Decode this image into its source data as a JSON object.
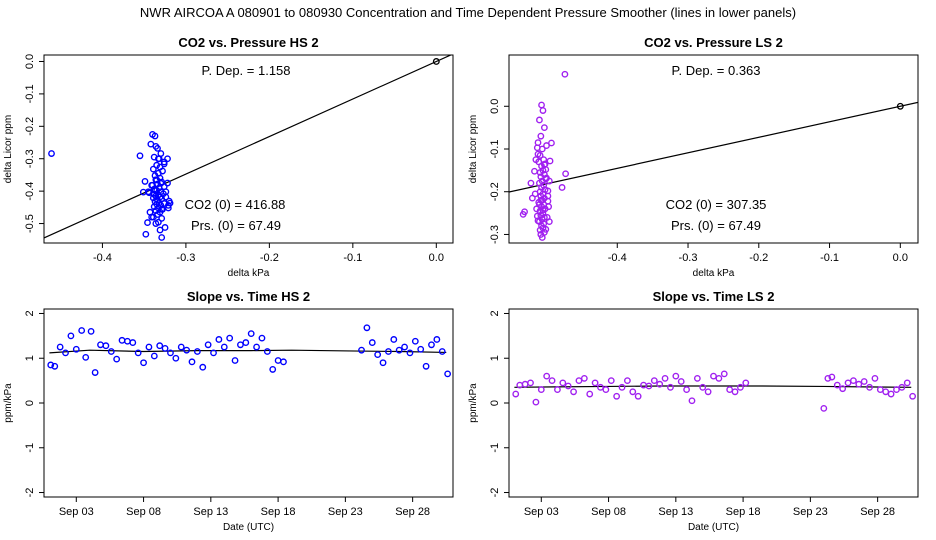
{
  "page": {
    "title": "NWR   AIRCOA A   080901 to 080930   Concentration and Time Dependent Pressure Smoother (lines in lower panels)"
  },
  "colors": {
    "hs_points": "#0000ff",
    "ls_points": "#a020f0",
    "line": "#000000",
    "axis": "#000000"
  },
  "chart_data": [
    {
      "id": "hs-scatter",
      "type": "scatter",
      "title": "CO2 vs. Pressure HS 2",
      "xlabel": "delta kPa",
      "ylabel": "delta Licor ppm",
      "xlim": [
        -0.47,
        0.02
      ],
      "ylim": [
        -0.56,
        0.02
      ],
      "xticks": [
        -0.4,
        -0.3,
        -0.2,
        -0.1,
        0.0
      ],
      "xtick_labels": [
        "-0.4",
        "-0.3",
        "-0.2",
        "-0.1",
        "0.0"
      ],
      "yticks": [
        0.0,
        -0.1,
        -0.2,
        -0.3,
        -0.4,
        -0.5
      ],
      "ytick_labels": [
        "0.0",
        "-0.1",
        "-0.2",
        "-0.3",
        "-0.4",
        "-0.5"
      ],
      "annotations": {
        "p_dep": "P. Dep. =  1.158",
        "co2_0": "CO2 (0) =  416.88",
        "prs_0": "Prs. (0) =  67.49"
      },
      "reference_point": [
        0.0,
        0.0
      ],
      "fit_line": {
        "slope": 1.158,
        "intercept": 0.0
      },
      "x": [
        -0.461,
        -0.34,
        -0.337,
        -0.336,
        -0.334,
        -0.342,
        -0.33,
        -0.338,
        -0.332,
        -0.335,
        -0.339,
        -0.328,
        -0.333,
        -0.337,
        -0.331,
        -0.336,
        -0.329,
        -0.334,
        -0.34,
        -0.326,
        -0.332,
        -0.338,
        -0.335,
        -0.33,
        -0.344,
        -0.327,
        -0.333,
        -0.336,
        -0.331,
        -0.339,
        -0.329,
        -0.334,
        -0.337,
        -0.332,
        -0.335,
        -0.33,
        -0.338,
        -0.333,
        -0.328,
        -0.336,
        -0.331,
        -0.334,
        -0.339,
        -0.322,
        -0.326,
        -0.333,
        -0.349,
        -0.341,
        -0.336,
        -0.331,
        -0.322,
        -0.319,
        -0.325,
        -0.348,
        -0.329,
        -0.321,
        -0.326,
        -0.335,
        -0.33,
        -0.331,
        -0.337,
        -0.324,
        -0.345,
        -0.343,
        -0.326,
        -0.329,
        -0.324,
        -0.338,
        -0.341,
        -0.346,
        -0.32,
        -0.355,
        -0.351,
        -0.333,
        -0.329,
        -0.321
      ],
      "y": [
        -0.284,
        -0.225,
        -0.23,
        -0.262,
        -0.268,
        -0.255,
        -0.284,
        -0.295,
        -0.3,
        -0.32,
        -0.332,
        -0.338,
        -0.345,
        -0.352,
        -0.36,
        -0.365,
        -0.372,
        -0.378,
        -0.382,
        -0.386,
        -0.39,
        -0.394,
        -0.398,
        -0.402,
        -0.405,
        -0.408,
        -0.412,
        -0.415,
        -0.418,
        -0.421,
        -0.424,
        -0.428,
        -0.432,
        -0.436,
        -0.44,
        -0.444,
        -0.448,
        -0.452,
        -0.456,
        -0.46,
        -0.465,
        -0.472,
        -0.48,
        -0.3,
        -0.31,
        -0.3,
        -0.37,
        -0.382,
        -0.5,
        -0.52,
        -0.375,
        -0.437,
        -0.512,
        -0.533,
        -0.543,
        -0.452,
        -0.316,
        -0.365,
        -0.376,
        -0.326,
        -0.397,
        -0.402,
        -0.402,
        -0.465,
        -0.438,
        -0.484,
        -0.418,
        -0.41,
        -0.48,
        -0.497,
        -0.431,
        -0.291,
        -0.403,
        -0.496,
        -0.456,
        -0.444
      ]
    },
    {
      "id": "ls-scatter",
      "type": "scatter",
      "title": "CO2 vs. Pressure LS 2",
      "xlabel": "delta kPa",
      "ylabel": "delta Licor ppm",
      "xlim": [
        -0.553,
        0.025
      ],
      "ylim": [
        -0.32,
        0.12
      ],
      "xticks": [
        -0.4,
        -0.3,
        -0.2,
        -0.1,
        0.0
      ],
      "xtick_labels": [
        "-0.4",
        "-0.3",
        "-0.2",
        "-0.1",
        "0.0"
      ],
      "yticks": [
        0.0,
        -0.1,
        -0.2,
        -0.3
      ],
      "ytick_labels": [
        "0.0",
        "-0.1",
        "-0.2",
        "-0.3"
      ],
      "annotations": {
        "p_dep": "P. Dep. =  0.363",
        "co2_0": "CO2 (0) =  307.35",
        "prs_0": "Prs. (0) =  67.49"
      },
      "reference_point": [
        0.0,
        0.0
      ],
      "fit_line": {
        "slope": 0.363,
        "intercept": 0.0
      },
      "x": [
        -0.474,
        -0.507,
        -0.505,
        -0.51,
        -0.503,
        -0.508,
        -0.512,
        -0.5,
        -0.506,
        -0.509,
        -0.504,
        -0.511,
        -0.502,
        -0.507,
        -0.505,
        -0.509,
        -0.503,
        -0.508,
        -0.501,
        -0.506,
        -0.51,
        -0.504,
        -0.507,
        -0.502,
        -0.509,
        -0.505,
        -0.508,
        -0.503,
        -0.506,
        -0.511,
        -0.504,
        -0.507,
        -0.502,
        -0.509,
        -0.505,
        -0.508,
        -0.503,
        -0.506,
        -0.51,
        -0.504,
        -0.507,
        -0.505,
        -0.509,
        -0.503,
        -0.508,
        -0.506,
        -0.531,
        -0.533,
        -0.512,
        -0.496,
        -0.498,
        -0.473,
        -0.478,
        -0.513,
        -0.515,
        -0.522,
        -0.52,
        -0.497,
        -0.499,
        -0.514,
        -0.516,
        -0.501,
        -0.5,
        -0.498,
        -0.512,
        -0.493,
        -0.495,
        -0.517,
        -0.51,
        -0.498,
        -0.505,
        -0.501,
        -0.508,
        -0.503,
        -0.513,
        -0.496
      ],
      "y": [
        0.075,
        0.003,
        -0.01,
        -0.032,
        -0.05,
        -0.07,
        -0.085,
        -0.092,
        -0.1,
        -0.115,
        -0.125,
        -0.13,
        -0.135,
        -0.14,
        -0.15,
        -0.155,
        -0.16,
        -0.165,
        -0.17,
        -0.175,
        -0.18,
        -0.185,
        -0.19,
        -0.195,
        -0.2,
        -0.205,
        -0.21,
        -0.215,
        -0.22,
        -0.225,
        -0.23,
        -0.235,
        -0.24,
        -0.245,
        -0.25,
        -0.255,
        -0.26,
        -0.265,
        -0.27,
        -0.275,
        -0.28,
        -0.285,
        -0.29,
        -0.295,
        -0.3,
        -0.307,
        -0.247,
        -0.253,
        -0.112,
        -0.175,
        -0.21,
        -0.158,
        -0.19,
        -0.097,
        -0.125,
        -0.18,
        -0.215,
        -0.235,
        -0.26,
        -0.24,
        -0.205,
        -0.148,
        -0.168,
        -0.222,
        -0.268,
        -0.086,
        -0.128,
        -0.152,
        -0.23,
        -0.198,
        -0.243,
        -0.288,
        -0.22,
        -0.137,
        -0.257,
        -0.27
      ]
    },
    {
      "id": "hs-slope",
      "type": "scatter",
      "title": "Slope vs. Time HS 2",
      "xlabel": "Date (UTC)",
      "ylabel": "ppm/kPa",
      "xlim": [
        0.6,
        31.0
      ],
      "ylim": [
        -2.1,
        2.1
      ],
      "xticks": [
        3,
        8,
        13,
        18,
        23,
        28
      ],
      "xtick_labels": [
        "Sep 03",
        "Sep 08",
        "Sep 13",
        "Sep 18",
        "Sep 23",
        "Sep 28"
      ],
      "yticks": [
        2,
        1,
        0,
        -1,
        -2
      ],
      "ytick_labels": [
        "2",
        "1",
        "0",
        "-1",
        "-2"
      ],
      "smoother": {
        "x": [
          1.0,
          4.0,
          8.0,
          12.0,
          16.0,
          19.0,
          24.0,
          27.0,
          30.5
        ],
        "y": [
          1.12,
          1.18,
          1.15,
          1.17,
          1.17,
          1.18,
          1.16,
          1.15,
          1.13
        ]
      },
      "x": [
        1.1,
        1.4,
        1.8,
        2.2,
        2.6,
        3.0,
        3.4,
        3.7,
        4.1,
        4.4,
        4.8,
        5.2,
        5.6,
        6.0,
        6.4,
        6.8,
        7.2,
        7.6,
        8.0,
        8.4,
        8.8,
        9.2,
        9.6,
        10.0,
        10.4,
        10.8,
        11.2,
        11.6,
        12.0,
        12.4,
        12.8,
        13.2,
        13.6,
        14.0,
        14.4,
        14.8,
        15.2,
        15.6,
        16.0,
        16.4,
        16.8,
        17.2,
        17.6,
        18.0,
        18.4,
        24.2,
        24.6,
        25.0,
        25.4,
        25.8,
        26.2,
        26.6,
        27.0,
        27.4,
        27.8,
        28.2,
        28.6,
        29.0,
        29.4,
        29.8,
        30.2,
        30.6
      ],
      "y": [
        0.85,
        0.82,
        1.25,
        1.12,
        1.5,
        1.2,
        1.62,
        1.02,
        1.6,
        0.68,
        1.3,
        1.28,
        1.15,
        0.98,
        1.4,
        1.38,
        1.35,
        1.12,
        0.9,
        1.25,
        1.05,
        1.28,
        1.22,
        1.12,
        1.0,
        1.25,
        1.18,
        0.92,
        1.15,
        0.8,
        1.3,
        1.12,
        1.42,
        1.25,
        1.45,
        0.95,
        1.3,
        1.35,
        1.55,
        1.25,
        1.45,
        1.15,
        0.75,
        0.95,
        0.92,
        1.18,
        1.68,
        1.35,
        1.08,
        0.9,
        1.15,
        1.42,
        1.18,
        1.25,
        1.12,
        1.38,
        1.2,
        0.82,
        1.3,
        1.42,
        1.15,
        0.65
      ]
    },
    {
      "id": "ls-slope",
      "type": "scatter",
      "title": "Slope vs. Time LS 2",
      "xlabel": "Date (UTC)",
      "ylabel": "ppm/kPa",
      "xlim": [
        0.6,
        31.0
      ],
      "ylim": [
        -2.1,
        2.1
      ],
      "xticks": [
        3,
        8,
        13,
        18,
        23,
        28
      ],
      "xtick_labels": [
        "Sep 03",
        "Sep 08",
        "Sep 13",
        "Sep 18",
        "Sep 23",
        "Sep 28"
      ],
      "yticks": [
        2,
        1,
        0,
        -1,
        -2
      ],
      "ytick_labels": [
        "2",
        "1",
        "0",
        "-1",
        "-2"
      ],
      "smoother": {
        "x": [
          1.0,
          4.0,
          8.0,
          12.0,
          16.0,
          19.0,
          24.0,
          27.0,
          30.5
        ],
        "y": [
          0.35,
          0.36,
          0.37,
          0.38,
          0.38,
          0.38,
          0.37,
          0.36,
          0.35
        ]
      },
      "x": [
        1.1,
        1.4,
        1.8,
        2.2,
        2.6,
        3.0,
        3.4,
        3.8,
        4.2,
        4.6,
        5.0,
        5.4,
        5.8,
        6.2,
        6.6,
        7.0,
        7.4,
        7.8,
        8.2,
        8.6,
        9.0,
        9.4,
        9.8,
        10.2,
        10.6,
        11.0,
        11.4,
        11.8,
        12.2,
        12.6,
        13.0,
        13.4,
        13.8,
        14.2,
        14.6,
        15.0,
        15.4,
        15.8,
        16.2,
        16.6,
        17.0,
        17.4,
        17.8,
        18.2,
        24.0,
        24.3,
        24.6,
        25.0,
        25.4,
        25.8,
        26.2,
        26.6,
        27.0,
        27.4,
        27.8,
        28.2,
        28.6,
        29.0,
        29.4,
        29.8,
        30.2,
        30.6
      ],
      "y": [
        0.2,
        0.4,
        0.42,
        0.45,
        0.02,
        0.3,
        0.6,
        0.5,
        0.3,
        0.45,
        0.38,
        0.25,
        0.5,
        0.55,
        0.2,
        0.45,
        0.35,
        0.3,
        0.5,
        0.15,
        0.35,
        0.5,
        0.25,
        0.15,
        0.4,
        0.38,
        0.5,
        0.42,
        0.55,
        0.35,
        0.6,
        0.48,
        0.3,
        0.05,
        0.55,
        0.35,
        0.25,
        0.6,
        0.55,
        0.65,
        0.3,
        0.25,
        0.35,
        0.45,
        -0.12,
        0.55,
        0.58,
        0.4,
        0.32,
        0.45,
        0.5,
        0.42,
        0.48,
        0.35,
        0.55,
        0.3,
        0.25,
        0.2,
        0.3,
        0.35,
        0.45,
        0.15
      ]
    }
  ]
}
